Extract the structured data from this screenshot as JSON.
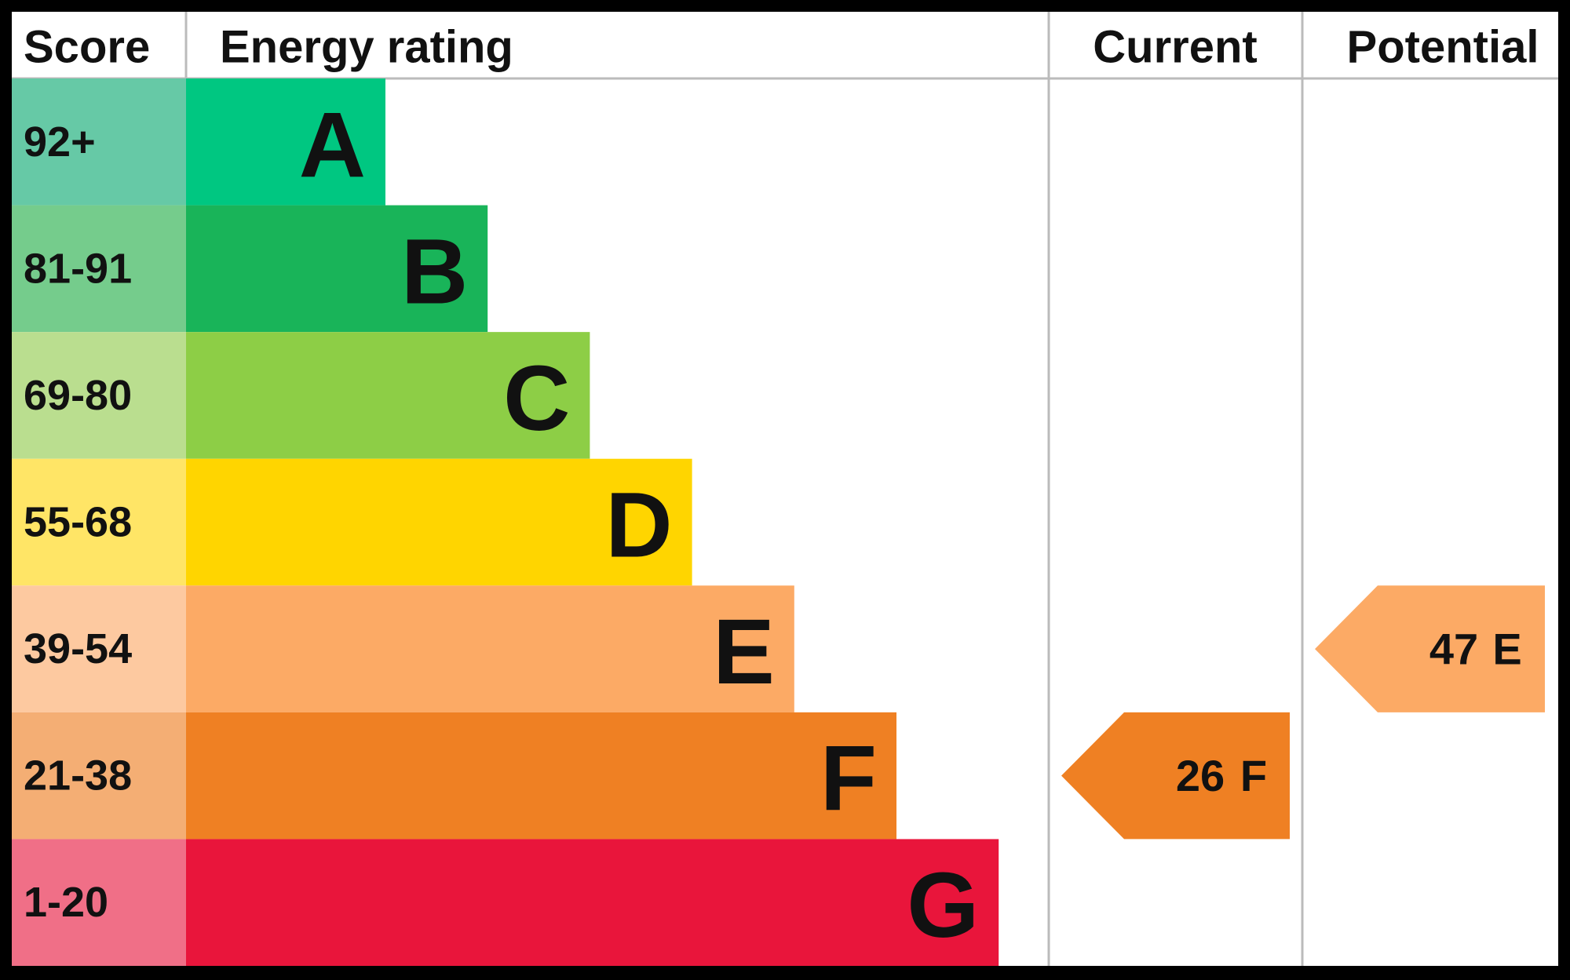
{
  "header": {
    "score": "Score",
    "energy_rating": "Energy rating",
    "current": "Current",
    "potential": "Potential"
  },
  "rows": [
    {
      "score": "92+",
      "letter": "A",
      "color": "#00c781",
      "score_color": "#66c9a6"
    },
    {
      "score": "81-91",
      "letter": "B",
      "color": "#19b459",
      "score_color": "#75cc8c"
    },
    {
      "score": "69-80",
      "letter": "C",
      "color": "#8dce46",
      "score_color": "#bade8f"
    },
    {
      "score": "55-68",
      "letter": "D",
      "color": "#ffd500",
      "score_color": "#ffe566"
    },
    {
      "score": "39-54",
      "letter": "E",
      "color": "#fcaa65",
      "score_color": "#fdc9a0"
    },
    {
      "score": "21-38",
      "letter": "F",
      "color": "#ef8023",
      "score_color": "#f4ae74"
    },
    {
      "score": "1-20",
      "letter": "G",
      "color": "#e9153b",
      "score_color": "#f06f87"
    }
  ],
  "current": {
    "value": 26,
    "letter": "F"
  },
  "potential": {
    "value": 47,
    "letter": "E"
  }
}
